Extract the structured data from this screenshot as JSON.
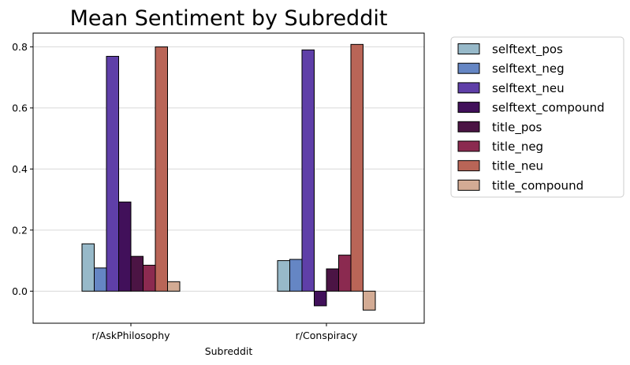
{
  "chart_data": {
    "type": "bar",
    "title": "Mean Sentiment by Subreddit",
    "xlabel": "Subreddit",
    "ylabel": "",
    "categories": [
      "r/AskPhilosophy",
      "r/Conspiracy"
    ],
    "ylim": [
      -0.105,
      0.845
    ],
    "yticks": [
      "0.0",
      "0.2",
      "0.4",
      "0.6",
      "0.8"
    ],
    "grid": "y",
    "legend_position": "outside-right",
    "series": [
      {
        "name": "selftext_pos",
        "color": "#97b9c9",
        "values": [
          0.155,
          0.1
        ]
      },
      {
        "name": "selftext_neg",
        "color": "#6586c4",
        "values": [
          0.076,
          0.104
        ]
      },
      {
        "name": "selftext_neu",
        "color": "#5f3fa8",
        "values": [
          0.769,
          0.79
        ]
      },
      {
        "name": "selftext_compound",
        "color": "#41105a",
        "values": [
          0.292,
          -0.048
        ]
      },
      {
        "name": "title_pos",
        "color": "#4b1444",
        "values": [
          0.114,
          0.073
        ]
      },
      {
        "name": "title_neg",
        "color": "#8b2a50",
        "values": [
          0.085,
          0.118
        ]
      },
      {
        "name": "title_neu",
        "color": "#b96557",
        "values": [
          0.8,
          0.808
        ]
      },
      {
        "name": "title_compound",
        "color": "#d3ab94",
        "values": [
          0.031,
          -0.062
        ]
      }
    ]
  }
}
